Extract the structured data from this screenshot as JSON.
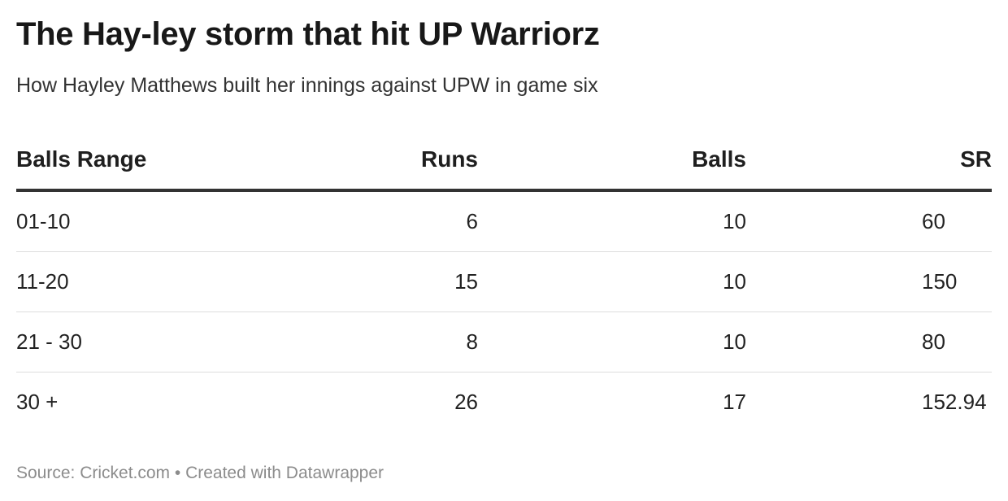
{
  "header": {
    "title": "The Hay-ley storm that hit UP Warriorz",
    "subtitle": "How Hayley Matthews built her innings against UPW in game six"
  },
  "chart_data": {
    "type": "table",
    "columns": [
      "Balls Range",
      "Runs",
      "Balls",
      "SR"
    ],
    "rows": [
      [
        "01-10",
        "6",
        "10",
        "60"
      ],
      [
        "11-20",
        "15",
        "10",
        "150"
      ],
      [
        "21 - 30",
        "8",
        "10",
        "80"
      ],
      [
        "30 +",
        "26",
        "17",
        "152.94"
      ]
    ]
  },
  "footer": {
    "text": "Source: Cricket.com • Created with Datawrapper"
  }
}
